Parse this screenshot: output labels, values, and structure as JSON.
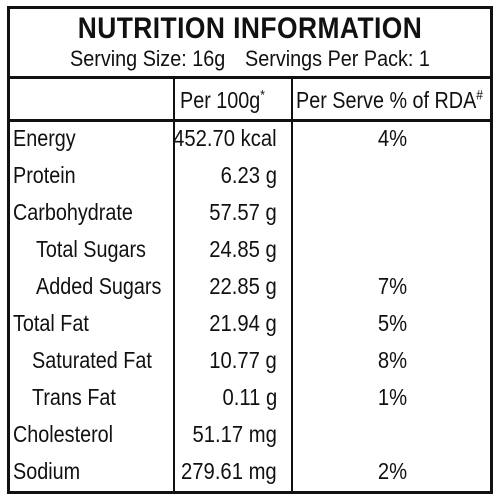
{
  "header": {
    "title": "NUTRITION INFORMATION",
    "serving_size": "Serving Size: 16g",
    "servings_per_pack": "Servings Per Pack: 1"
  },
  "columns": {
    "per_100g": "Per 100g",
    "per_100g_mark": "*",
    "per_serve": "Per Serve % of RDA",
    "per_serve_mark": "#"
  },
  "rows": [
    {
      "label": "Energy",
      "value": "452.70 kcal",
      "rda": "4%"
    },
    {
      "label": "Protein",
      "value": "6.23 g",
      "rda": ""
    },
    {
      "label": "Carbohydrate",
      "value": "57.57 g",
      "rda": ""
    },
    {
      "label": "Total Sugars",
      "value": "24.85 g",
      "rda": ""
    },
    {
      "label": "Added Sugars",
      "value": "22.85 g",
      "rda": "7%"
    },
    {
      "label": "Total Fat",
      "value": "21.94 g",
      "rda": "5%"
    },
    {
      "label": "Saturated Fat",
      "value": "10.77 g",
      "rda": "8%"
    },
    {
      "label": "Trans Fat",
      "value": "0.11 g",
      "rda": "1%"
    },
    {
      "label": "Cholesterol",
      "value": "51.17 mg",
      "rda": ""
    },
    {
      "label": "Sodium",
      "value": "279.61 mg",
      "rda": "2%"
    }
  ]
}
